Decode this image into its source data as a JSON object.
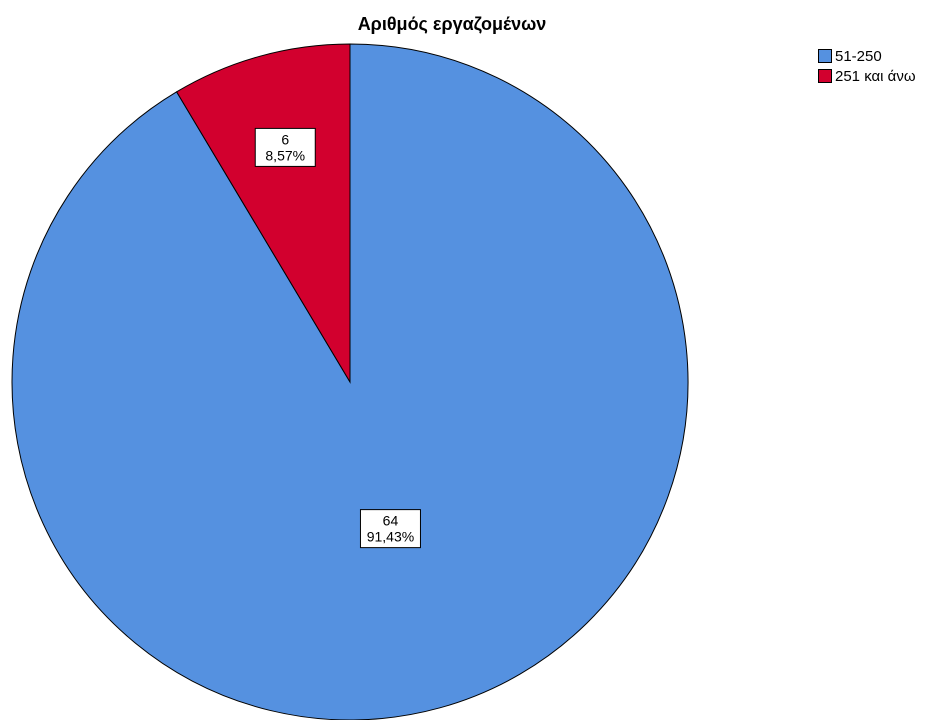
{
  "chart_data": {
    "type": "pie",
    "title": "Αριθμός εργαζομένων",
    "categories": [
      "51-250",
      "251 και άνω"
    ],
    "values": [
      64,
      6
    ],
    "percent_labels": [
      "91,43%",
      "8,57%"
    ],
    "colors": [
      "#5591e0",
      "#d2002e"
    ],
    "legend_position": "top-right",
    "start_angle_deg": 0,
    "direction": "clockwise"
  },
  "legend": {
    "items": [
      {
        "label": "51-250",
        "color": "#5591e0"
      },
      {
        "label": "251 και άνω",
        "color": "#d2002e"
      }
    ]
  }
}
